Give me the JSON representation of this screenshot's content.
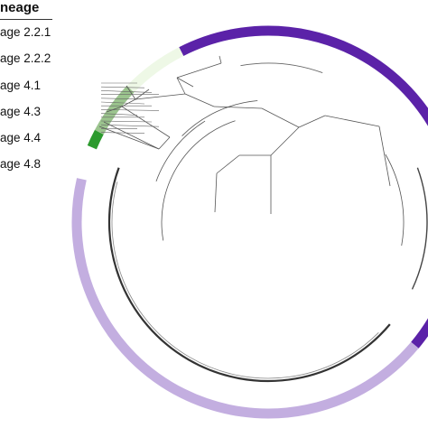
{
  "legend": {
    "title": "neage",
    "items": [
      {
        "label": "age 2.2.1",
        "color": "#5b22a8"
      },
      {
        "label": "age 2.2.2",
        "color": "#eef8e6"
      },
      {
        "label": "age 4.1",
        "color": "#9bc48e"
      },
      {
        "label": "age 4.3",
        "color": "#2c9a2e"
      },
      {
        "label": "age 4.4",
        "color": "#c9b8e8"
      },
      {
        "label": "age 4.8",
        "color": "#c3aee0"
      }
    ]
  },
  "ring": {
    "segments": [
      {
        "lineage": "2.2.1",
        "color": "#5b22a8"
      },
      {
        "lineage": "2.2.2",
        "color": "#eef8e6"
      },
      {
        "lineage": "4.1",
        "color": "#9bc48e"
      },
      {
        "lineage": "4.3",
        "color": "#2c9a2e"
      },
      {
        "lineage": "4.8",
        "color": "#c3aee0"
      }
    ]
  },
  "colors": {
    "branch": "#555555"
  }
}
